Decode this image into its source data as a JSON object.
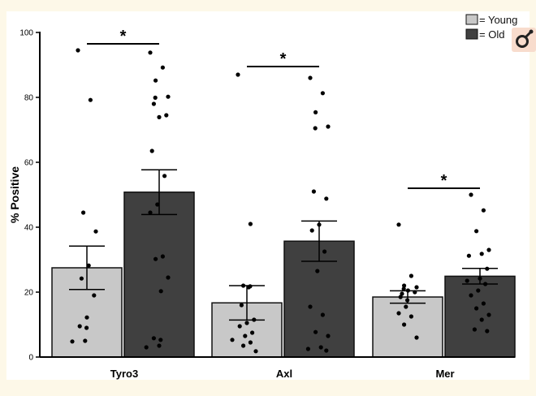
{
  "chart_data": {
    "type": "bar",
    "title": "",
    "xlabel": "",
    "ylabel": "% Positive",
    "ylim": [
      0,
      100
    ],
    "yticks": [
      0,
      20,
      40,
      60,
      80,
      100
    ],
    "categories": [
      "Tyro3",
      "Axl",
      "Mer"
    ],
    "legend_position": "top-right",
    "legend_symbol": "=",
    "series": [
      {
        "name": "Young",
        "color": "#c8c8c8",
        "values": [
          27.5,
          16.7,
          18.5
        ],
        "sem": [
          6.7,
          5.3,
          1.9
        ],
        "points": [
          [
            94.5,
            79.2,
            44.5,
            38.7,
            28.2,
            24.2,
            19.0,
            12.2,
            9.5,
            9.0,
            5.0,
            4.8
          ],
          [
            87.0,
            41.0,
            22.0,
            21.8,
            21.5,
            16.0,
            11.5,
            10.5,
            9.5,
            7.5,
            6.5,
            5.3,
            4.5,
            3.5,
            1.8
          ],
          [
            40.8,
            25.0,
            22.0,
            21.5,
            21.0,
            20.5,
            20.0,
            19.5,
            18.5,
            17.5,
            15.5,
            13.5,
            12.5,
            10.0,
            6.0
          ]
        ]
      },
      {
        "name": "Old",
        "color": "#404040",
        "values": [
          50.8,
          35.7,
          24.9
        ],
        "sem": [
          6.9,
          6.2,
          2.4
        ],
        "points": [
          [
            93.8,
            89.2,
            85.2,
            80.2,
            79.9,
            78.0,
            74.5,
            73.9,
            63.5,
            55.8,
            47.0,
            44.5,
            31.0,
            30.2,
            24.5,
            20.3,
            5.8,
            5.3,
            3.5,
            3.0
          ],
          [
            86.0,
            81.3,
            75.4,
            71.0,
            70.5,
            51.0,
            48.8,
            40.8,
            39.0,
            32.5,
            26.5,
            15.5,
            13.0,
            7.7,
            6.5,
            3.0,
            2.5,
            2.0
          ],
          [
            50.0,
            45.2,
            38.8,
            33.0,
            31.8,
            31.2,
            27.2,
            24.2,
            23.5,
            22.5,
            20.5,
            19.0,
            16.5,
            15.0,
            13.0,
            11.5,
            8.5,
            8.0
          ]
        ]
      }
    ],
    "annotations": [
      {
        "category": "Tyro3",
        "text": "*",
        "y": 96.5
      },
      {
        "category": "Axl",
        "text": "*",
        "y": 89.5
      },
      {
        "category": "Mer",
        "text": "*",
        "y": 52
      }
    ]
  },
  "legend": {
    "young_label": "= Young",
    "old_label": "= Old"
  }
}
